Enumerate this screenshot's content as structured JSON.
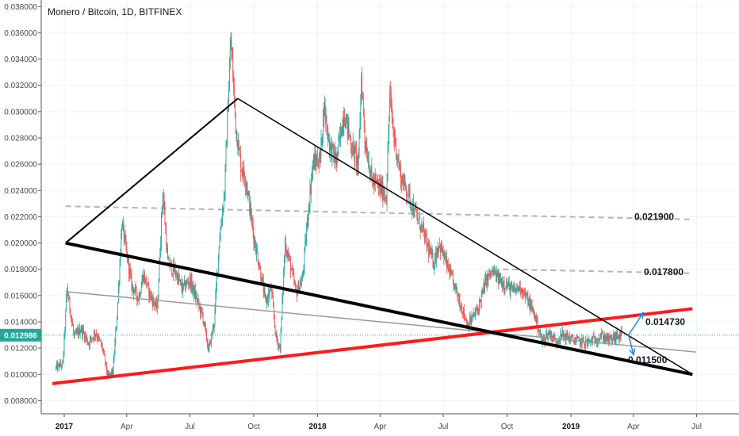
{
  "header": {
    "title": "Monero / Bitcoin, 1D, BITFINEX"
  },
  "chart_data": {
    "type": "candlestick",
    "title": "Monero / Bitcoin, 1D, BITFINEX",
    "ylim": [
      0.007,
      0.0385
    ],
    "y_ticks": [
      "0.008000",
      "0.010000",
      "0.012000",
      "0.014000",
      "0.016000",
      "0.018000",
      "0.020000",
      "0.022000",
      "0.024000",
      "0.026000",
      "0.028000",
      "0.030000",
      "0.032000",
      "0.034000",
      "0.036000",
      "0.038000"
    ],
    "x_ticks": [
      {
        "label": "2017",
        "year": true
      },
      {
        "label": "Apr",
        "year": false
      },
      {
        "label": "Jul",
        "year": false
      },
      {
        "label": "Oct",
        "year": false
      },
      {
        "label": "2018",
        "year": true
      },
      {
        "label": "Apr",
        "year": false
      },
      {
        "label": "Jul",
        "year": false
      },
      {
        "label": "Oct",
        "year": false
      },
      {
        "label": "2019",
        "year": true
      },
      {
        "label": "Apr",
        "year": false
      },
      {
        "label": "Jul",
        "year": false
      }
    ],
    "current_price": "0.012986",
    "current_price_value": 0.012986,
    "colors": {
      "up": "#26a69a",
      "down": "#ef5350",
      "support": "#ff1a1a",
      "trend": "#000000",
      "channel": "#999999",
      "level": "#b2b5be",
      "price": "#26a69a"
    },
    "path_points": [
      [
        "2016-12-20",
        0.0105
      ],
      [
        "2016-12-30",
        0.0108
      ],
      [
        "2017-01-05",
        0.0165
      ],
      [
        "2017-01-10",
        0.0148
      ],
      [
        "2017-01-15",
        0.0128
      ],
      [
        "2017-01-25",
        0.0135
      ],
      [
        "2017-02-05",
        0.0124
      ],
      [
        "2017-02-15",
        0.0132
      ],
      [
        "2017-02-25",
        0.012
      ],
      [
        "2017-03-05",
        0.0098
      ],
      [
        "2017-03-12",
        0.0102
      ],
      [
        "2017-03-18",
        0.0145
      ],
      [
        "2017-03-25",
        0.0215
      ],
      [
        "2017-03-30",
        0.0198
      ],
      [
        "2017-04-08",
        0.0168
      ],
      [
        "2017-04-18",
        0.0158
      ],
      [
        "2017-04-25",
        0.0176
      ],
      [
        "2017-05-05",
        0.016
      ],
      [
        "2017-05-15",
        0.015
      ],
      [
        "2017-05-23",
        0.024
      ],
      [
        "2017-05-30",
        0.0185
      ],
      [
        "2017-06-10",
        0.0178
      ],
      [
        "2017-06-20",
        0.0165
      ],
      [
        "2017-07-01",
        0.0172
      ],
      [
        "2017-07-10",
        0.0158
      ],
      [
        "2017-07-20",
        0.0143
      ],
      [
        "2017-07-28",
        0.0118
      ],
      [
        "2017-08-05",
        0.014
      ],
      [
        "2017-08-12",
        0.02
      ],
      [
        "2017-08-20",
        0.024
      ],
      [
        "2017-08-25",
        0.0308
      ],
      [
        "2017-08-29",
        0.0355
      ],
      [
        "2017-09-05",
        0.029
      ],
      [
        "2017-09-12",
        0.026
      ],
      [
        "2017-09-20",
        0.0248
      ],
      [
        "2017-10-01",
        0.0205
      ],
      [
        "2017-10-10",
        0.018
      ],
      [
        "2017-10-18",
        0.0155
      ],
      [
        "2017-10-26",
        0.0165
      ],
      [
        "2017-11-02",
        0.0128
      ],
      [
        "2017-11-08",
        0.012
      ],
      [
        "2017-11-15",
        0.02
      ],
      [
        "2017-11-22",
        0.0185
      ],
      [
        "2017-12-01",
        0.0162
      ],
      [
        "2017-12-10",
        0.0172
      ],
      [
        "2017-12-18",
        0.0222
      ],
      [
        "2017-12-25",
        0.026
      ],
      [
        "2018-01-05",
        0.0265
      ],
      [
        "2018-01-10",
        0.0305
      ],
      [
        "2018-01-18",
        0.0275
      ],
      [
        "2018-01-28",
        0.0262
      ],
      [
        "2018-02-08",
        0.03
      ],
      [
        "2018-02-20",
        0.0272
      ],
      [
        "2018-03-01",
        0.026
      ],
      [
        "2018-03-05",
        0.0328
      ],
      [
        "2018-03-10",
        0.028
      ],
      [
        "2018-03-20",
        0.0248
      ],
      [
        "2018-04-01",
        0.0242
      ],
      [
        "2018-04-10",
        0.0236
      ],
      [
        "2018-04-15",
        0.0312
      ],
      [
        "2018-04-20",
        0.0285
      ],
      [
        "2018-05-01",
        0.025
      ],
      [
        "2018-05-10",
        0.024
      ],
      [
        "2018-05-20",
        0.0225
      ],
      [
        "2018-06-01",
        0.021
      ],
      [
        "2018-06-10",
        0.0195
      ],
      [
        "2018-06-17",
        0.0185
      ],
      [
        "2018-06-25",
        0.02
      ],
      [
        "2018-07-05",
        0.0185
      ],
      [
        "2018-07-15",
        0.017
      ],
      [
        "2018-07-25",
        0.0155
      ],
      [
        "2018-08-05",
        0.0138
      ],
      [
        "2018-08-12",
        0.0143
      ],
      [
        "2018-08-20",
        0.015
      ],
      [
        "2018-09-01",
        0.0172
      ],
      [
        "2018-09-10",
        0.0178
      ],
      [
        "2018-09-20",
        0.0172
      ],
      [
        "2018-10-01",
        0.0168
      ],
      [
        "2018-10-10",
        0.0163
      ],
      [
        "2018-10-20",
        0.0167
      ],
      [
        "2018-11-01",
        0.0155
      ],
      [
        "2018-11-10",
        0.0145
      ],
      [
        "2018-11-20",
        0.0125
      ],
      [
        "2018-12-01",
        0.0132
      ],
      [
        "2018-12-10",
        0.0125
      ],
      [
        "2018-12-20",
        0.013
      ],
      [
        "2019-01-05",
        0.0126
      ],
      [
        "2019-01-15",
        0.0125
      ],
      [
        "2019-01-25",
        0.0124
      ],
      [
        "2019-02-05",
        0.0127
      ],
      [
        "2019-02-15",
        0.0129
      ],
      [
        "2019-02-25",
        0.0126
      ],
      [
        "2019-03-05",
        0.0128
      ],
      [
        "2019-03-15",
        0.013
      ]
    ],
    "drawings": {
      "upper_left_line": {
        "from": [
          "2017-01-03",
          0.02
        ],
        "to": [
          "2017-09-08",
          0.031
        ]
      },
      "upper_right_line": {
        "from": [
          "2017-09-08",
          0.031
        ],
        "to": [
          "2019-06-25",
          0.01
        ]
      },
      "lower_thick_line": {
        "from": [
          "2017-01-03",
          0.02
        ],
        "to": [
          "2019-06-25",
          0.01
        ]
      },
      "red_support_line": {
        "from": [
          "2016-12-15",
          0.0093
        ],
        "to": [
          "2019-06-25",
          0.015
        ]
      },
      "gray_channel_line": {
        "from": [
          "2017-01-03",
          0.0163
        ],
        "to": [
          "2019-06-30",
          0.0117
        ]
      },
      "dashed_level_1": {
        "from": [
          "2017-01-03",
          0.0228
        ],
        "to": [
          "2019-06-25",
          0.0218
        ]
      },
      "dashed_level_2": {
        "from": [
          "2018-09-25",
          0.018
        ],
        "to": [
          "2019-06-25",
          0.0177
        ]
      },
      "arrow_up": {
        "from": [
          "2019-03-25",
          0.013
        ],
        "to": [
          "2019-04-15",
          0.0147
        ]
      },
      "arrow_down": {
        "from": [
          "2019-03-25",
          0.013
        ],
        "to": [
          "2019-04-01",
          0.0115
        ]
      }
    },
    "levels": [
      {
        "label": "0.021900"
      },
      {
        "label": "0.017800"
      },
      {
        "label": "0.014730"
      },
      {
        "label": "0.011500"
      }
    ]
  }
}
